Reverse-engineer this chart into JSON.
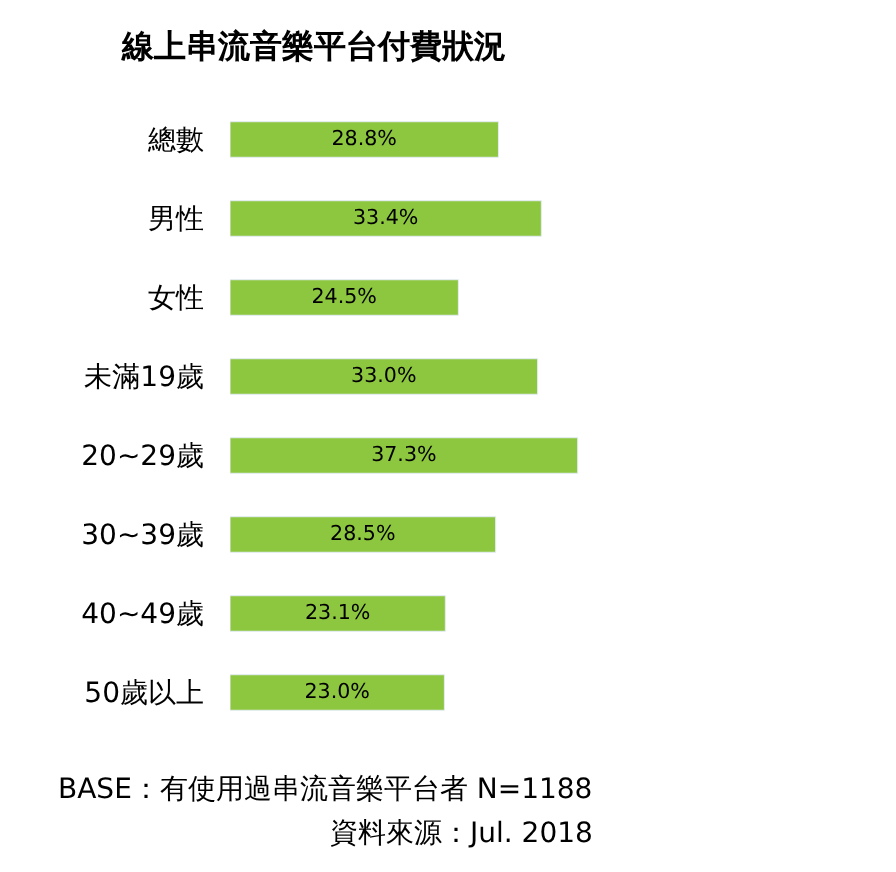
{
  "chart_data": {
    "type": "bar",
    "orientation": "horizontal",
    "title": "線上串流音樂平台付費狀況",
    "categories": [
      "總數",
      "男性",
      "女性",
      "未滿19歲",
      "20~29歲",
      "30~39歲",
      "40~49歲",
      "50歲以上"
    ],
    "values": [
      28.8,
      33.4,
      24.5,
      33.0,
      37.3,
      28.5,
      23.1,
      23.0
    ],
    "value_labels": [
      "28.8%",
      "33.4%",
      "24.5%",
      "33.0%",
      "37.3%",
      "28.5%",
      "23.1%",
      "23.0%"
    ],
    "color": "#8dc63f",
    "legend": false,
    "tick_labels": "y",
    "annotations": [
      "BASE：有使用過串流音樂平台者 N=1188",
      "資料來源：Jul. 2018"
    ]
  }
}
